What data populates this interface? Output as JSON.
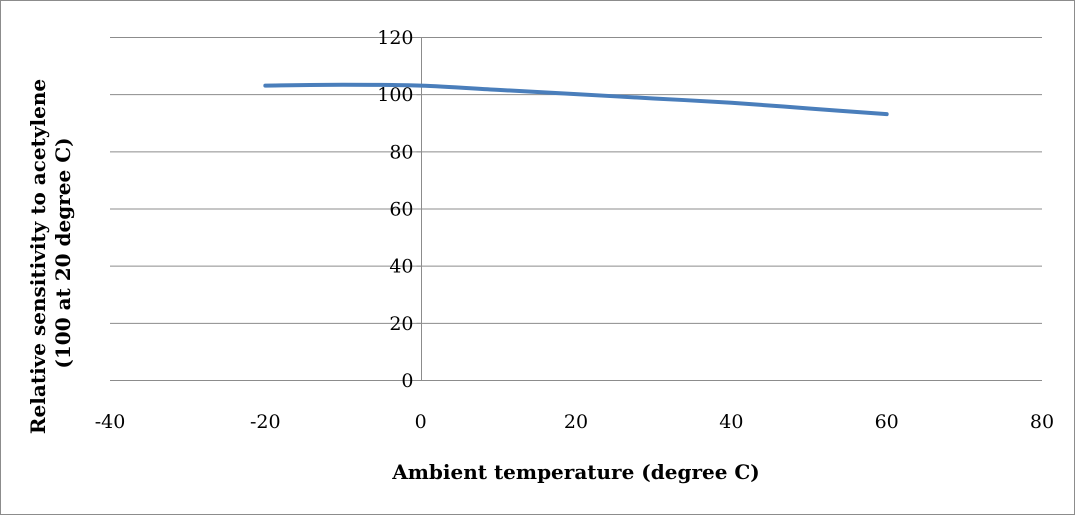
{
  "chart_data": {
    "type": "line",
    "title": "",
    "xlabel": "Ambient temperature (degree C)",
    "ylabel_lines": [
      "Relative sensitivity to acetylene",
      "(100 at 20 degree C)"
    ],
    "xlim": [
      -40,
      80
    ],
    "ylim": [
      0,
      120
    ],
    "x_ticks": [
      -40,
      -20,
      0,
      20,
      40,
      60,
      80
    ],
    "x_tick_labels": [
      "-40",
      "-20",
      "0",
      "20",
      "40",
      "60",
      "80"
    ],
    "y_ticks": [
      0,
      20,
      40,
      60,
      80,
      100,
      120
    ],
    "y_tick_labels": [
      "0",
      "20",
      "40",
      "60",
      "80",
      "100",
      "120"
    ],
    "grid": {
      "horizontal": true,
      "vertical": false
    },
    "legend": "none",
    "series": [
      {
        "x": [
          -20,
          -10,
          0,
          10,
          20,
          30,
          40,
          50,
          60
        ],
        "y": [
          103,
          103.3,
          103,
          101.5,
          100,
          98.5,
          97,
          95,
          93
        ],
        "color": "#4a7ebb"
      }
    ],
    "colors": {
      "grid": "#8c8c8c",
      "axis": "#8c8c8c",
      "border": "#8c8c8c"
    }
  }
}
